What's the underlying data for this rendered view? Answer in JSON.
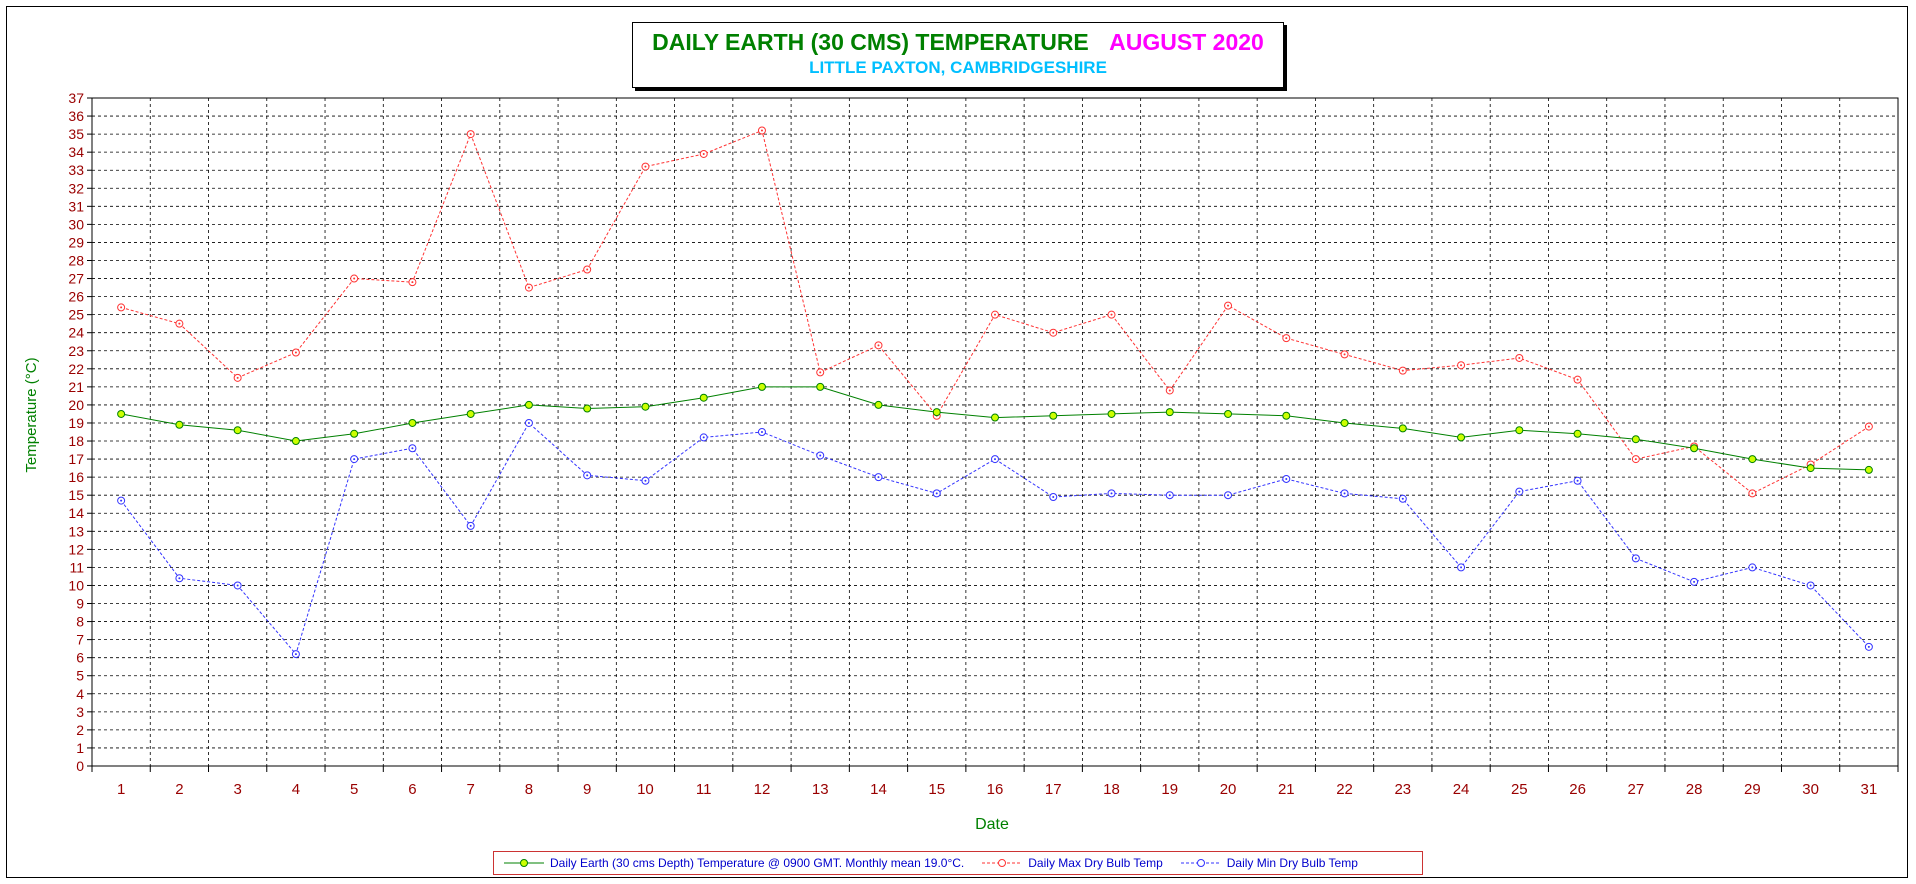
{
  "title": {
    "main": "DAILY EARTH (30 CMS) TEMPERATURE",
    "month": "AUGUST 2020",
    "subtitle": "LITTLE PAXTON, CAMBRIDGESHIRE"
  },
  "colors": {
    "earth_line": "#008000",
    "earth_marker": "#ccff00",
    "max_line": "#ff3333",
    "min_line": "#3333ff",
    "axis_text": "#990000",
    "axis_label": "#008000",
    "title_green": "#008000",
    "title_magenta": "#ff00ff",
    "subtitle": "#00bfff"
  },
  "chart_data": {
    "type": "line",
    "xlabel": "Date",
    "ylabel": "Temperature (°C)",
    "ylim": [
      0,
      37
    ],
    "grid": true,
    "legend_placement": "bottom",
    "x": [
      1,
      2,
      3,
      4,
      5,
      6,
      7,
      8,
      9,
      10,
      11,
      12,
      13,
      14,
      15,
      16,
      17,
      18,
      19,
      20,
      21,
      22,
      23,
      24,
      25,
      26,
      27,
      28,
      29,
      30,
      31
    ],
    "series": [
      {
        "name": "Daily Earth (30 cms Depth) Temperature @ 0900 GMT. Monthly mean 19.0°C.",
        "style": "solid",
        "values": [
          19.5,
          18.9,
          18.6,
          18.0,
          18.4,
          19.0,
          19.5,
          20.0,
          19.8,
          19.9,
          20.4,
          21.0,
          21.0,
          20.0,
          19.6,
          19.3,
          19.4,
          19.5,
          19.6,
          19.5,
          19.4,
          19.0,
          18.7,
          18.2,
          18.6,
          18.4,
          18.1,
          17.6,
          17.0,
          16.5,
          16.4
        ]
      },
      {
        "name": "Daily Max Dry Bulb Temp",
        "style": "dashed",
        "values": [
          25.4,
          24.5,
          21.5,
          22.9,
          27.0,
          26.8,
          35.0,
          26.5,
          27.5,
          33.2,
          33.9,
          35.2,
          21.8,
          23.3,
          19.4,
          25.0,
          24.0,
          25.0,
          20.8,
          25.5,
          23.7,
          22.8,
          21.9,
          22.2,
          22.6,
          21.4,
          17.0,
          17.7,
          15.1,
          16.7,
          18.8
        ]
      },
      {
        "name": "Daily Min Dry Bulb Temp",
        "style": "dashed",
        "values": [
          14.7,
          10.4,
          10.0,
          6.2,
          17.0,
          17.6,
          13.3,
          19.0,
          16.1,
          15.8,
          18.2,
          18.5,
          17.2,
          16.0,
          15.1,
          17.0,
          14.9,
          15.1,
          15.0,
          15.0,
          15.9,
          15.1,
          14.8,
          11.0,
          15.2,
          15.8,
          11.5,
          10.2,
          11.0,
          10.0,
          6.6
        ]
      }
    ]
  }
}
